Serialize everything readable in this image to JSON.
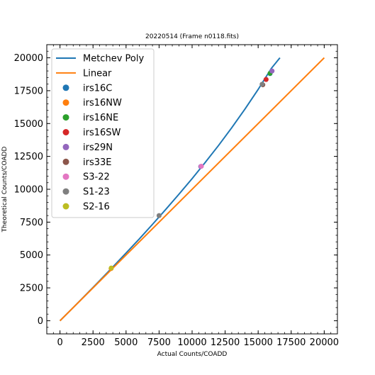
{
  "chart_data": {
    "type": "scatter",
    "title": "20220514 (Frame n0118.fits)",
    "xlabel": "Actual Counts/COADD",
    "ylabel": "Theoretical Counts/COADD",
    "xlim": [
      -1000,
      21000
    ],
    "ylim": [
      -1000,
      21000
    ],
    "xticks": [
      0,
      2500,
      5000,
      7500,
      10000,
      12500,
      15000,
      17500,
      20000
    ],
    "yticks": [
      0,
      2500,
      5000,
      7500,
      10000,
      12500,
      15000,
      17500,
      20000
    ],
    "xtick_labels": [
      "0",
      "2500",
      "5000",
      "7500",
      "10000",
      "12500",
      "15000",
      "17500",
      "20000"
    ],
    "ytick_labels": [
      "0",
      "2500",
      "5000",
      "7500",
      "10000",
      "12500",
      "15000",
      "17500",
      "20000"
    ],
    "legend_position": "top-left",
    "lines": [
      {
        "name": "Metchev Poly",
        "color": "#1f77b4",
        "x": [
          0,
          1000,
          2000,
          3000,
          4000,
          5000,
          6000,
          7000,
          8000,
          9000,
          10000,
          11000,
          12000,
          13000,
          14000,
          15000,
          16000,
          16650
        ],
        "y": [
          0,
          1005,
          2020,
          3050,
          4090,
          5150,
          6220,
          7330,
          8460,
          9620,
          10810,
          12050,
          13330,
          14680,
          16100,
          17600,
          19200,
          20000
        ]
      },
      {
        "name": "Linear",
        "color": "#ff7f0e",
        "x": [
          0,
          20000
        ],
        "y": [
          0,
          20000
        ]
      }
    ],
    "series": [
      {
        "name": "irs16C",
        "color": "#1f77b4",
        "x": [
          15900
        ],
        "y": [
          18800
        ]
      },
      {
        "name": "irs16NW",
        "color": "#ff7f0e",
        "x": [
          3870
        ],
        "y": [
          3970
        ]
      },
      {
        "name": "irs16NE",
        "color": "#2ca02c",
        "x": [
          15900
        ],
        "y": [
          18820
        ]
      },
      {
        "name": "irs16SW",
        "color": "#d62728",
        "x": [
          15600
        ],
        "y": [
          18350
        ]
      },
      {
        "name": "irs29N",
        "color": "#9467bd",
        "x": [
          16050
        ],
        "y": [
          19000
        ]
      },
      {
        "name": "irs33E",
        "color": "#8c564b",
        "x": [
          15350
        ],
        "y": [
          17950
        ]
      },
      {
        "name": "S3-22",
        "color": "#e377c2",
        "x": [
          10700
        ],
        "y": [
          11750
        ]
      },
      {
        "name": "S1-23",
        "color": "#7f7f7f",
        "x": [
          15300
        ],
        "y": [
          17990
        ]
      },
      {
        "name": "S2-16",
        "color": "#bcbd22",
        "x": [
          3880
        ],
        "y": [
          4010
        ]
      }
    ],
    "extra_points": [
      {
        "color": "#7f7f7f",
        "x": 7500,
        "y": 8000
      },
      {
        "color": "#9467bd",
        "x": 10650,
        "y": 11730
      }
    ]
  }
}
